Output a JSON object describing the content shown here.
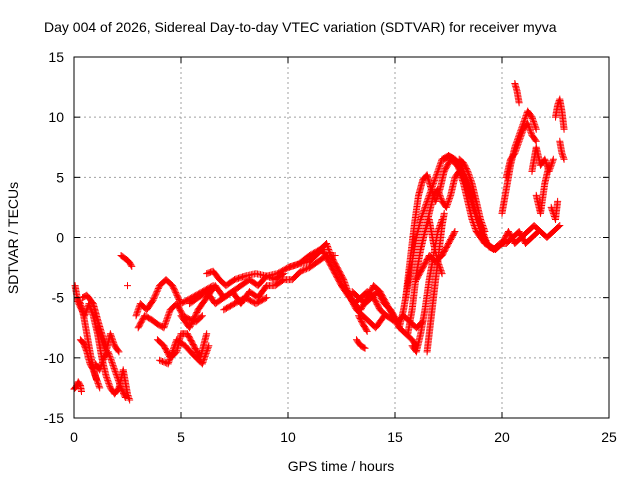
{
  "chart_data": {
    "type": "scatter",
    "title": "Day 004 of 2026, Sidereal Day-to-day VTEC variation (SDTVAR) for receiver myva",
    "xlabel": "GPS time / hours",
    "ylabel": "SDTVAR / TECUs",
    "xlim": [
      0,
      25
    ],
    "ylim": [
      -15,
      15
    ],
    "x_ticks": [
      0,
      5,
      10,
      15,
      20,
      25
    ],
    "y_ticks": [
      -15,
      -10,
      -5,
      0,
      5,
      10,
      15
    ],
    "x_tick_labels": [
      "0",
      "5",
      "10",
      "15",
      "20",
      "25"
    ],
    "y_tick_labels": [
      "-15",
      "-10",
      "-5",
      "0",
      "5",
      "10",
      "15"
    ],
    "grid": true,
    "marker": "+",
    "color": "#ff0000",
    "series": [
      {
        "name": "SDTVAR",
        "tracks": [
          {
            "x": [
              0.0,
              0.1,
              0.2,
              0.3,
              0.35
            ],
            "y": [
              -12.6,
              -12.4,
              -12.0,
              -12.3,
              -12.8
            ]
          },
          {
            "x": [
              0.05,
              0.15,
              0.3,
              0.45,
              0.6,
              0.8,
              1.0,
              1.2
            ],
            "y": [
              -4.0,
              -5.0,
              -5.5,
              -6.5,
              -8.0,
              -10.0,
              -11.5,
              -12.5
            ]
          },
          {
            "x": [
              0.15,
              0.3,
              0.5,
              0.7,
              0.9,
              1.1,
              1.3,
              1.5,
              1.7,
              1.9,
              2.1,
              2.3,
              2.5,
              2.6
            ],
            "y": [
              -5.2,
              -5.8,
              -6.5,
              -5.5,
              -6.5,
              -8.0,
              -10.0,
              -11.5,
              -12.5,
              -13.0,
              -12.5,
              -11.0,
              -13.0,
              -13.5
            ]
          },
          {
            "x": [
              0.4,
              0.6,
              0.9,
              1.1,
              1.3,
              1.5
            ],
            "y": [
              -5.0,
              -4.8,
              -5.5,
              -6.8,
              -8.0,
              -9.0
            ]
          },
          {
            "x": [
              1.0,
              1.2,
              1.4,
              1.6,
              1.8,
              2.0,
              2.2,
              2.4
            ],
            "y": [
              -10.5,
              -11.0,
              -10.0,
              -9.5,
              -10.5,
              -11.5,
              -12.5,
              -13.3
            ]
          },
          {
            "x": [
              1.1,
              1.3,
              1.5,
              1.7,
              1.9,
              2.1
            ],
            "y": [
              -7.5,
              -8.5,
              -9.5,
              -8.0,
              -9.0,
              -9.5
            ]
          },
          {
            "x": [
              0.3,
              0.45,
              0.6,
              0.75,
              0.9,
              1.05
            ],
            "y": [
              -8.5,
              -8.8,
              -9.5,
              -10.5,
              -11.0,
              -11.8
            ]
          },
          {
            "x": [
              2.2,
              2.35,
              2.5,
              2.6,
              2.7
            ],
            "y": [
              -1.5,
              -1.7,
              -1.9,
              -2.1,
              -2.4
            ]
          },
          {
            "x": [
              2.5
            ],
            "y": [
              -4.0
            ]
          },
          {
            "x": [
              2.9,
              3.1,
              3.4,
              3.7,
              4.0,
              4.3,
              4.6,
              5.0,
              5.5,
              6.0,
              6.5
            ],
            "y": [
              -6.5,
              -5.5,
              -6.0,
              -5.2,
              -4.0,
              -3.5,
              -4.0,
              -5.5,
              -5.0,
              -4.5,
              -4.0
            ]
          },
          {
            "x": [
              3.0,
              3.3,
              3.6,
              3.9,
              4.2,
              4.5,
              4.8,
              5.1,
              5.4,
              5.7,
              6.0
            ],
            "y": [
              -7.5,
              -6.5,
              -6.8,
              -7.2,
              -7.5,
              -6.0,
              -5.5,
              -6.5,
              -6.8,
              -7.0,
              -6.5
            ]
          },
          {
            "x": [
              3.9,
              4.2,
              4.5,
              4.8,
              5.0,
              5.3,
              5.6,
              5.9,
              6.2
            ],
            "y": [
              -8.5,
              -9.0,
              -10.0,
              -9.5,
              -8.0,
              -8.0,
              -9.0,
              -10.0,
              -8.0
            ]
          },
          {
            "x": [
              4.0,
              4.4,
              4.8,
              5.2,
              5.6,
              6.0,
              6.3
            ],
            "y": [
              -10.2,
              -10.5,
              -8.5,
              -9.0,
              -9.8,
              -10.5,
              -9.0
            ]
          },
          {
            "x": [
              5.0,
              5.4,
              5.8,
              6.2,
              6.6,
              7.0,
              7.4,
              7.8,
              8.2,
              8.6,
              9.0,
              9.4,
              9.8
            ],
            "y": [
              -6.5,
              -7.5,
              -6.0,
              -5.0,
              -4.0,
              -5.0,
              -4.5,
              -4.0,
              -3.5,
              -4.0,
              -3.2,
              -3.5,
              -3.0
            ]
          },
          {
            "x": [
              5.4,
              5.8,
              6.2,
              6.6,
              7.0,
              7.4,
              7.8,
              8.2,
              8.6,
              9.0,
              9.4,
              9.8,
              10.2,
              10.6,
              11.0,
              11.4,
              11.8,
              12.2
            ],
            "y": [
              -5.5,
              -5.0,
              -4.5,
              -5.5,
              -5.0,
              -4.5,
              -5.5,
              -4.5,
              -5.0,
              -4.0,
              -4.0,
              -3.5,
              -3.5,
              -2.8,
              -2.5,
              -2.0,
              -1.5,
              -1.5
            ]
          },
          {
            "x": [
              6.2,
              6.5,
              6.8,
              7.1,
              7.5,
              8.0,
              8.5,
              9.0,
              9.5,
              10.0,
              10.5,
              11.0
            ],
            "y": [
              -3.0,
              -2.8,
              -3.5,
              -4.0,
              -3.5,
              -3.2,
              -3.0,
              -3.2,
              -3.0,
              -2.5,
              -2.2,
              -2.0
            ]
          },
          {
            "x": [
              7.0,
              7.5,
              8.0,
              8.5,
              9.0
            ],
            "y": [
              -6.0,
              -5.5,
              -5.0,
              -5.5,
              -5.0
            ]
          },
          {
            "x": [
              10.0,
              10.5,
              11.0,
              11.5,
              11.8,
              12.0,
              12.3,
              12.6,
              12.9,
              13.2,
              13.5,
              13.8,
              14.1,
              14.5
            ],
            "y": [
              -2.5,
              -2.2,
              -1.5,
              -1.0,
              -0.5,
              -1.5,
              -2.5,
              -3.5,
              -5.0,
              -6.0,
              -6.5,
              -7.0,
              -7.5,
              -6.5
            ]
          },
          {
            "x": [
              11.0,
              11.3,
              11.6,
              11.9,
              12.2,
              12.5,
              12.8,
              13.1,
              13.4,
              13.7,
              14.0,
              14.3,
              14.6,
              15.0
            ],
            "y": [
              -2.0,
              -1.5,
              -1.0,
              -2.0,
              -3.0,
              -4.0,
              -4.8,
              -5.5,
              -5.0,
              -4.5,
              -5.0,
              -6.0,
              -6.5,
              -7.0
            ]
          },
          {
            "x": [
              12.5,
              12.8,
              13.1,
              13.4,
              13.7,
              14.0,
              14.3,
              14.6,
              14.9,
              15.2,
              15.5,
              15.8,
              16.0
            ],
            "y": [
              -4.0,
              -4.5,
              -5.5,
              -6.0,
              -5.0,
              -4.0,
              -4.5,
              -5.5,
              -6.5,
              -7.5,
              -8.0,
              -8.5,
              -9.0
            ]
          },
          {
            "x": [
              13.0,
              13.3,
              13.6,
              13.9,
              14.2,
              14.5,
              14.8,
              15.1,
              15.4,
              15.7,
              16.0,
              16.3
            ],
            "y": [
              -4.5,
              -5.0,
              -5.5,
              -5.0,
              -4.5,
              -5.5,
              -6.0,
              -7.0,
              -6.5,
              -7.0,
              -7.5,
              -7.0
            ]
          },
          {
            "x": [
              13.3,
              13.5,
              13.7
            ],
            "y": [
              -6.5,
              -7.2,
              -7.8
            ]
          },
          {
            "x": [
              13.2,
              13.4,
              13.6
            ],
            "y": [
              -8.5,
              -9.0,
              -9.2
            ]
          },
          {
            "x": [
              15.2,
              15.4,
              15.6,
              15.8,
              16.0,
              16.2,
              16.4,
              16.6,
              16.8,
              17.0,
              17.2,
              17.5,
              17.8,
              18.1,
              18.4,
              18.7,
              19.0,
              19.3,
              19.6,
              19.9,
              20.2,
              20.5,
              20.8,
              21.1,
              21.4,
              21.7
            ],
            "y": [
              -7.5,
              -6.0,
              -4.0,
              -2.0,
              0.0,
              1.5,
              2.5,
              3.5,
              4.5,
              5.5,
              6.5,
              6.8,
              6.5,
              6.0,
              4.5,
              2.5,
              0.5,
              -0.5,
              -1.0,
              -0.5,
              -0.5,
              0.0,
              0.5,
              -0.5,
              0.0,
              0.5
            ]
          },
          {
            "x": [
              15.5,
              15.7,
              15.9,
              16.1,
              16.3,
              16.5,
              16.7,
              16.9,
              17.1,
              17.3,
              17.6,
              17.9,
              18.2,
              18.5,
              18.8,
              19.1,
              19.4,
              19.7,
              20.0,
              20.3,
              20.6,
              20.9,
              21.2,
              21.5,
              21.8,
              22.1,
              22.4,
              22.7
            ],
            "y": [
              -5.0,
              -2.0,
              1.0,
              3.5,
              4.8,
              5.2,
              4.0,
              3.0,
              4.0,
              5.5,
              6.5,
              6.0,
              5.0,
              3.5,
              1.5,
              0.0,
              -0.8,
              -1.0,
              -0.5,
              0.5,
              -0.5,
              0.0,
              0.5,
              1.0,
              0.5,
              0.0,
              0.5,
              1.0
            ]
          },
          {
            "x": [
              15.6,
              15.8,
              16.0,
              16.2,
              16.4,
              16.6,
              16.8,
              17.0,
              17.2,
              17.4,
              17.6,
              17.8,
              18.0,
              18.2,
              18.4,
              18.6,
              18.8,
              19.0,
              19.2,
              19.5
            ],
            "y": [
              -8.0,
              -6.0,
              -3.0,
              -1.0,
              0.5,
              2.0,
              3.5,
              4.0,
              3.0,
              2.5,
              3.5,
              5.0,
              5.5,
              4.5,
              3.0,
              1.5,
              0.5,
              0.0,
              -0.5,
              -0.8
            ]
          },
          {
            "x": [
              15.8,
              16.0,
              16.2,
              16.4,
              16.6,
              16.8,
              17.0,
              17.2
            ],
            "y": [
              -9.0,
              -9.5,
              -8.0,
              -6.0,
              -3.5,
              -1.5,
              0.5,
              1.5
            ]
          },
          {
            "x": [
              16.0,
              16.3,
              16.6,
              16.9,
              17.2,
              17.5,
              17.8
            ],
            "y": [
              -3.5,
              -2.5,
              -1.5,
              -2.0,
              -1.5,
              -0.5,
              0.5
            ]
          },
          {
            "x": [
              16.5,
              16.6,
              16.7,
              16.8,
              16.9,
              17.0,
              17.1,
              17.2,
              17.3
            ],
            "y": [
              -9.5,
              -8.0,
              -6.5,
              -5.0,
              -3.5,
              -2.0,
              -0.5,
              1.0,
              2.0
            ]
          },
          {
            "x": [
              16.2,
              16.4,
              16.6,
              16.8,
              17.0,
              17.2
            ],
            "y": [
              -1.0,
              0.5,
              1.5,
              -0.5,
              -2.0,
              -3.0
            ]
          },
          {
            "x": [
              17.3,
              17.5,
              17.7,
              17.9,
              18.1,
              18.3,
              18.5,
              18.7,
              18.9,
              19.1,
              19.3,
              19.5,
              19.7,
              20.0
            ],
            "y": [
              6.5,
              6.8,
              6.6,
              6.2,
              5.5,
              4.8,
              3.8,
              2.5,
              1.5,
              0.5,
              -0.5,
              -0.8,
              -1.0,
              -0.5
            ]
          },
          {
            "x": [
              18.0,
              18.2,
              18.4,
              18.6,
              18.8,
              19.0,
              19.2
            ],
            "y": [
              6.5,
              6.2,
              5.5,
              4.5,
              3.0,
              1.5,
              0.5
            ]
          },
          {
            "x": [
              20.0,
              20.2,
              20.4,
              20.6,
              20.8,
              21.0,
              21.2,
              21.4,
              21.6
            ],
            "y": [
              2.0,
              4.0,
              6.0,
              7.5,
              8.5,
              9.5,
              10.5,
              10.0,
              9.0
            ]
          },
          {
            "x": [
              20.2,
              20.4,
              20.6,
              20.8,
              21.0,
              21.2,
              21.4,
              21.6
            ],
            "y": [
              5.0,
              6.5,
              7.0,
              8.0,
              9.0,
              9.5,
              8.5,
              8.0
            ]
          },
          {
            "x": [
              20.6,
              20.7,
              20.8
            ],
            "y": [
              12.8,
              12.2,
              11.2
            ]
          },
          {
            "x": [
              21.4,
              21.6,
              21.8,
              22.0,
              22.2,
              22.4
            ],
            "y": [
              5.5,
              7.5,
              6.0,
              6.5,
              5.5,
              6.5
            ]
          },
          {
            "x": [
              21.6,
              21.8,
              22.0,
              22.2
            ],
            "y": [
              3.5,
              2.0,
              4.5,
              6.0
            ]
          },
          {
            "x": [
              22.3,
              22.5,
              22.6
            ],
            "y": [
              2.5,
              1.5,
              3.0
            ]
          },
          {
            "x": [
              22.5,
              22.6,
              22.7,
              22.8,
              22.9
            ],
            "y": [
              10.0,
              11.0,
              11.5,
              10.5,
              9.0
            ]
          },
          {
            "x": [
              22.7,
              22.8,
              22.9
            ],
            "y": [
              8.0,
              7.0,
              6.5
            ]
          }
        ]
      }
    ]
  }
}
